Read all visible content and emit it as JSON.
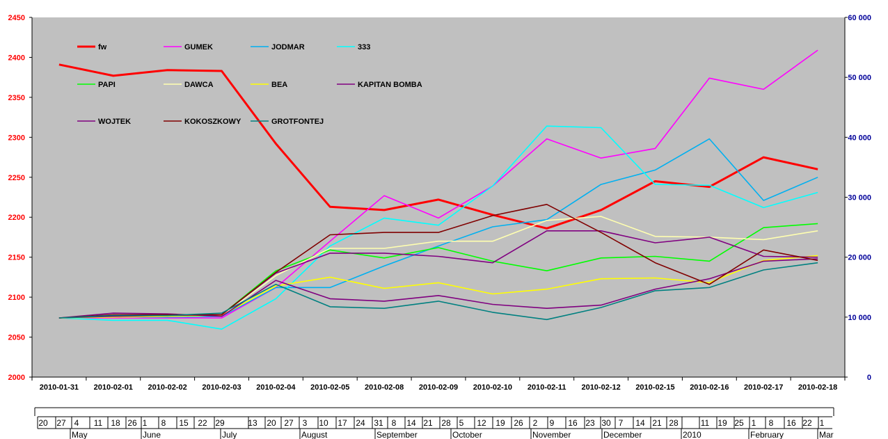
{
  "chart_data": {
    "type": "line",
    "categories": [
      "2010-01-31",
      "2010-02-01",
      "2010-02-02",
      "2010-02-03",
      "2010-02-04",
      "2010-02-05",
      "2010-02-08",
      "2010-02-09",
      "2010-02-10",
      "2010-02-11",
      "2010-02-12",
      "2010-02-15",
      "2010-02-16",
      "2010-02-17",
      "2010-02-18"
    ],
    "ylim": [
      2000,
      2450
    ],
    "yticks": [
      2000,
      2050,
      2100,
      2150,
      2200,
      2250,
      2300,
      2350,
      2400,
      2450
    ],
    "y2lim": [
      0,
      60000
    ],
    "y2ticks": [
      "0",
      "10 000",
      "20 000",
      "30 000",
      "40 000",
      "50 000",
      "60 000"
    ],
    "grid": false,
    "legend_position": "top-left",
    "series": [
      {
        "name": "fw",
        "color": "#ff0000",
        "width": 3,
        "values": [
          2391,
          2377,
          2384,
          2383,
          2292,
          2213,
          2209,
          2222,
          2203,
          2186,
          2209,
          2245,
          2238,
          2275,
          2260
        ]
      },
      {
        "name": "GUMEK",
        "color": "#ff00ff",
        "width": 1.6,
        "values": [
          2074,
          2074,
          2074,
          2074,
          2112,
          2170,
          2227,
          2199,
          2239,
          2298,
          2274,
          2286,
          2374,
          2360,
          2409
        ]
      },
      {
        "name": "JODMAR",
        "color": "#00b0f0",
        "width": 1.6,
        "values": [
          2074,
          2075,
          2075,
          2076,
          2112,
          2112,
          2139,
          2164,
          2188,
          2197,
          2241,
          2259,
          2298,
          2221,
          2250
        ]
      },
      {
        "name": "333",
        "color": "#00ffff",
        "width": 1.6,
        "values": [
          2074,
          2071,
          2071,
          2060,
          2098,
          2164,
          2199,
          2190,
          2239,
          2314,
          2312,
          2241,
          2240,
          2212,
          2231
        ]
      },
      {
        "name": "PAPI",
        "color": "#00ff00",
        "width": 1.6,
        "values": [
          2074,
          2076,
          2077,
          2078,
          2133,
          2159,
          2149,
          2162,
          2145,
          2133,
          2149,
          2151,
          2145,
          2187,
          2192
        ]
      },
      {
        "name": "DAWCA",
        "color": "#ffffb0",
        "width": 1.6,
        "values": [
          2074,
          2075,
          2076,
          2077,
          2127,
          2161,
          2161,
          2170,
          2170,
          2196,
          2201,
          2176,
          2175,
          2172,
          2183
        ]
      },
      {
        "name": "BEA",
        "color": "#ffff00",
        "width": 1.6,
        "values": [
          2074,
          2075,
          2076,
          2077,
          2114,
          2125,
          2111,
          2118,
          2104,
          2110,
          2123,
          2124,
          2118,
          2146,
          2152
        ]
      },
      {
        "name": "KAPITAN BOMBA",
        "color": "#800080",
        "width": 1.6,
        "values": [
          2074,
          2076,
          2077,
          2078,
          2130,
          2155,
          2155,
          2151,
          2143,
          2183,
          2183,
          2168,
          2175,
          2151,
          2150
        ]
      },
      {
        "name": "WOJTEK",
        "color": "#7f007f",
        "width": 1.6,
        "values": [
          2074,
          2080,
          2079,
          2076,
          2121,
          2098,
          2095,
          2102,
          2091,
          2086,
          2090,
          2110,
          2123,
          2145,
          2148
        ]
      },
      {
        "name": "KOKOSZKOWY",
        "color": "#800000",
        "width": 1.6,
        "values": [
          2074,
          2078,
          2078,
          2078,
          2131,
          2178,
          2181,
          2181,
          2202,
          2216,
          2181,
          2143,
          2116,
          2159,
          2146
        ]
      },
      {
        "name": "GROTFONTEJ",
        "color": "#008080",
        "width": 1.6,
        "values": [
          2074,
          2077,
          2077,
          2080,
          2116,
          2088,
          2086,
          2095,
          2081,
          2072,
          2087,
          2108,
          2112,
          2134,
          2143
        ]
      }
    ]
  },
  "timeline": {
    "days": [
      "20",
      "27",
      "4",
      "11",
      "18",
      "26",
      "1",
      "8",
      "15",
      "22",
      "29",
      "13",
      "20",
      "27",
      "3",
      "10",
      "17",
      "24",
      "31",
      "8",
      "14",
      "21",
      "28",
      "5",
      "12",
      "19",
      "26",
      "2",
      "9",
      "16",
      "23",
      "30",
      "7",
      "14",
      "21",
      "28",
      "11",
      "19",
      "25",
      "1",
      "8",
      "16",
      "22",
      "1"
    ],
    "months": [
      "May",
      "June",
      "July",
      "August",
      "September",
      "October",
      "November",
      "December",
      "2010",
      "February",
      "Mar"
    ]
  }
}
